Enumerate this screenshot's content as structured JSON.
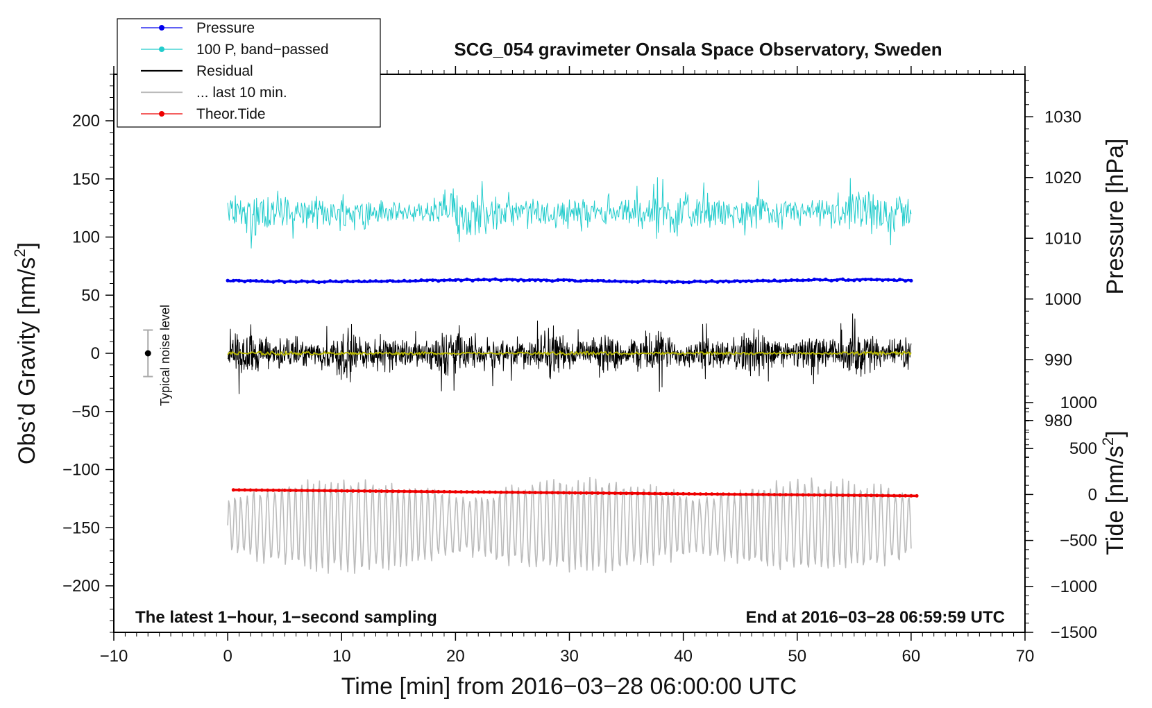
{
  "chart_data": {
    "type": "line",
    "title": "SCG_054 gravimeter Onsala Space Observatory, Sweden",
    "xlabel": "Time [min] from 2016−03−28 06:00:00 UTC",
    "ylabel_left_main": "Obs’d Gravity [nm/s",
    "ylabel_left_sup": "2",
    "ylabel_left_end": "]",
    "ylabel_right_pressure": "Pressure [hPa]",
    "ylabel_right_tide_main": "Tide [nm/s",
    "ylabel_right_tide_sup": "2",
    "ylabel_right_tide_end": "]",
    "xlim": [
      -10,
      70
    ],
    "ylim_left": [
      -240,
      240
    ],
    "ylim_pressure": [
      973,
      1037
    ],
    "ylim_tide": [
      -1500,
      1000
    ],
    "x_ticks": [
      -10,
      0,
      10,
      20,
      30,
      40,
      50,
      60,
      70
    ],
    "x_tick_labels": [
      "−10",
      "0",
      "10",
      "20",
      "30",
      "40",
      "50",
      "60",
      "70"
    ],
    "y_left_ticks": [
      200,
      150,
      100,
      50,
      0,
      -50,
      -100,
      -150,
      -200
    ],
    "y_left_tick_labels": [
      "200",
      "150",
      "100",
      "50",
      "0",
      "−50",
      "−100",
      "−150",
      "−200"
    ],
    "pressure_ticks": [
      1030,
      1020,
      1010,
      1000,
      990,
      980
    ],
    "pressure_tick_labels": [
      "1030",
      "1020",
      "1010",
      "1000",
      "990",
      "980"
    ],
    "tide_ticks": [
      1000,
      500,
      0,
      -500,
      -1000,
      -1500
    ],
    "tide_tick_labels": [
      "1000",
      "500",
      "0",
      "−500",
      "−1000",
      "−1500"
    ],
    "legend": [
      {
        "label": "Pressure",
        "color": "#0000ee",
        "marker": true
      },
      {
        "label": "100 P, band−passed",
        "color": "#22cccc",
        "marker": true
      },
      {
        "label": "Residual",
        "color": "#000000",
        "marker": false
      },
      {
        "label": "... last 10 min.",
        "color": "#bbbbbb",
        "marker": false
      },
      {
        "label": "Theor.Tide",
        "color": "#ee0000",
        "marker": true
      }
    ],
    "note_left": "The latest 1−hour, 1−second sampling",
    "note_right": "End at 2016−03−28 06:59:59 UTC",
    "noise_label": "Typical noise level",
    "noise_bar": {
      "x": -7,
      "center": 0,
      "half_range": 20
    },
    "series": [
      {
        "name": "Pressure",
        "axis": "pressure",
        "color": "#0000ee",
        "x": [
          0,
          10,
          20,
          30,
          40,
          50,
          60
        ],
        "y": [
          1003.0,
          1002.9,
          1002.8,
          1002.9,
          1003.0,
          1003.0,
          1002.9
        ]
      },
      {
        "name": "100 P, band−passed",
        "axis": "left",
        "color": "#22cccc",
        "center": 121,
        "amplitude": 22,
        "x_range": [
          0,
          60
        ]
      },
      {
        "name": "Residual",
        "axis": "left",
        "color": "#000000",
        "center": 0,
        "amplitude": 22,
        "x_range": [
          0,
          60
        ]
      },
      {
        "name": "Residual smoothed",
        "axis": "left",
        "color": "#bbbb00",
        "center": 0,
        "amplitude": 1.5,
        "x_range": [
          0,
          60
        ]
      },
      {
        "name": "... last 10 min.",
        "axis": "left",
        "color": "#bbbbbb",
        "center": -148,
        "amplitude": 30,
        "x_range": [
          0,
          60
        ]
      },
      {
        "name": "Theor.Tide",
        "axis": "tide",
        "color": "#ee0000",
        "x": [
          0.5,
          60.5
        ],
        "y": [
          50,
          -15
        ]
      }
    ]
  }
}
